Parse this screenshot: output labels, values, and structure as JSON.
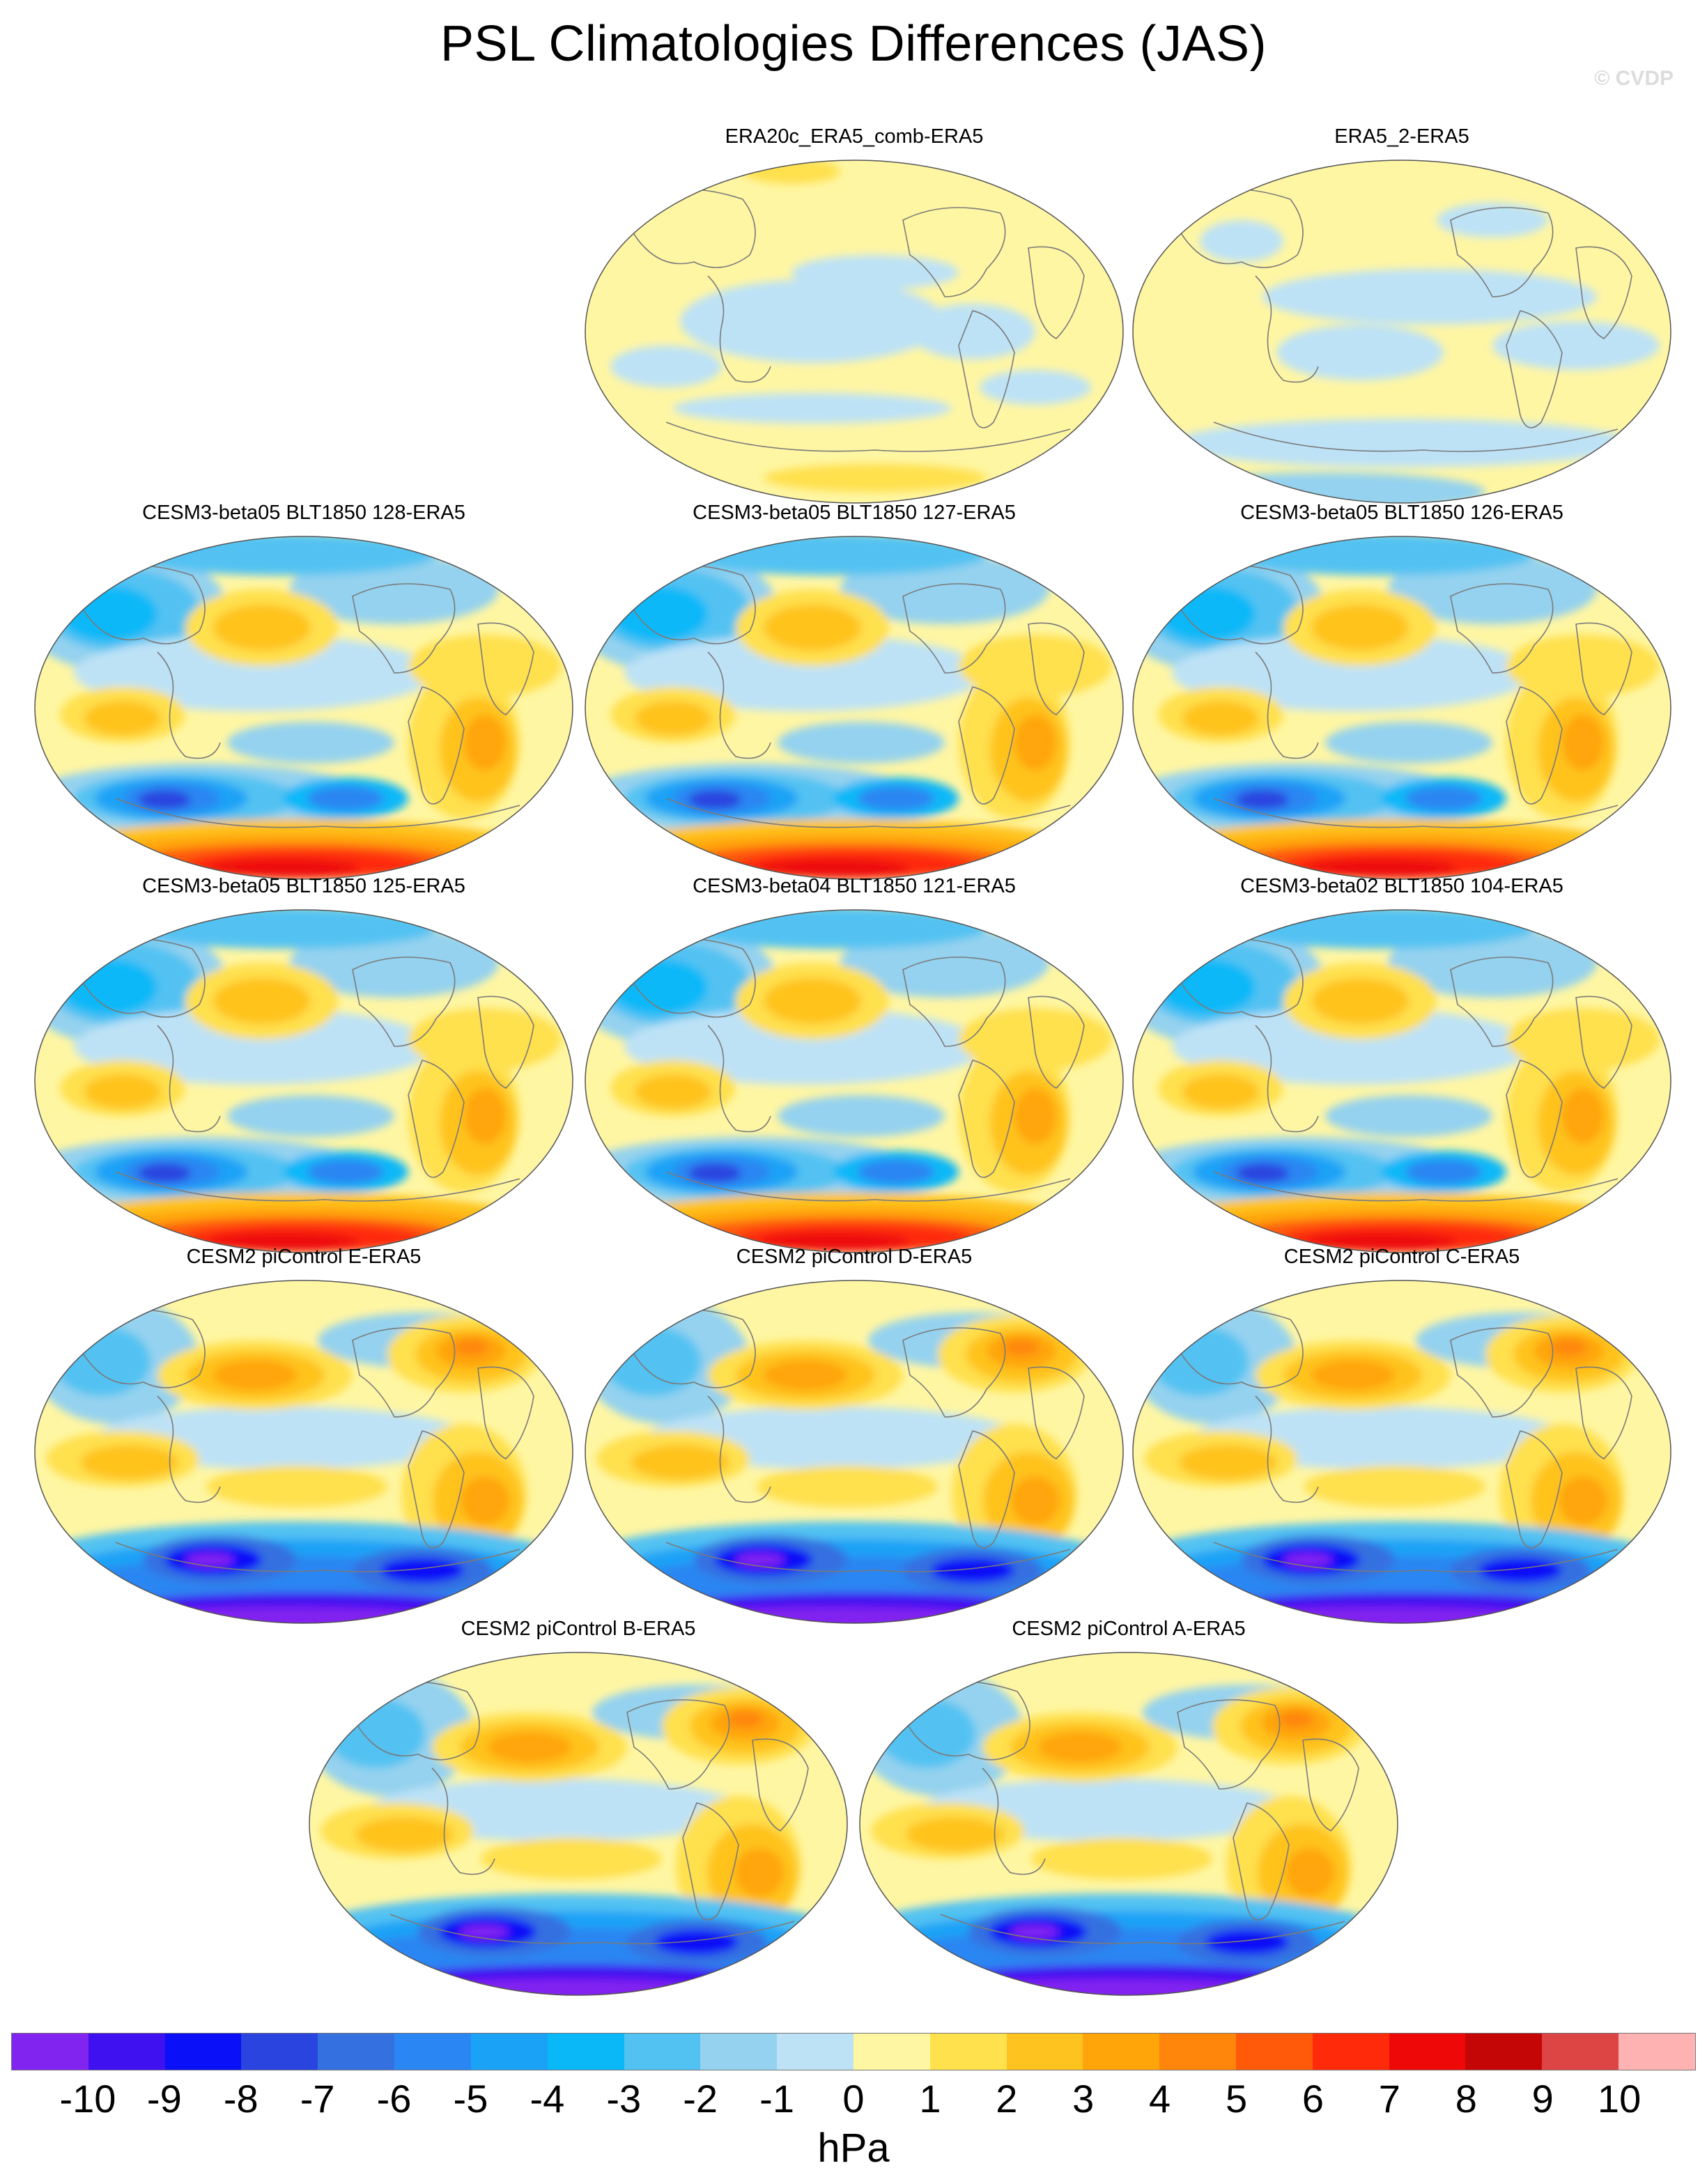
{
  "title": "PSL Climatologies Differences (JAS)",
  "watermark": "© CVDP",
  "panels": [
    {
      "title": "ERA20c_ERA5_comb-ERA5",
      "style": "obs1"
    },
    {
      "title": "ERA5_2-ERA5",
      "style": "obs2"
    },
    {
      "title": "CESM3-beta05 BLT1850 128-ERA5",
      "style": "beta"
    },
    {
      "title": "CESM3-beta05 BLT1850 127-ERA5",
      "style": "beta"
    },
    {
      "title": "CESM3-beta05 BLT1850 126-ERA5",
      "style": "beta"
    },
    {
      "title": "CESM3-beta05 BLT1850 125-ERA5",
      "style": "beta"
    },
    {
      "title": "CESM3-beta04 BLT1850 121-ERA5",
      "style": "beta"
    },
    {
      "title": "CESM3-beta02 BLT1850 104-ERA5",
      "style": "beta"
    },
    {
      "title": "CESM2 piControl E-ERA5",
      "style": "cesm2"
    },
    {
      "title": "CESM2 piControl D-ERA5",
      "style": "cesm2"
    },
    {
      "title": "CESM2 piControl C-ERA5",
      "style": "cesm2"
    },
    {
      "title": "CESM2 piControl B-ERA5",
      "style": "cesm2"
    },
    {
      "title": "CESM2 piControl A-ERA5",
      "style": "cesm2"
    }
  ],
  "colorbar": {
    "colors": [
      "#8124f0",
      "#3f10f0",
      "#0a10f8",
      "#2a44e0",
      "#3570e0",
      "#2a86f2",
      "#1aa2f6",
      "#0ab8f8",
      "#52c2f2",
      "#94d2ef",
      "#bde2f6",
      "#fff6a3",
      "#ffe04d",
      "#ffc31f",
      "#ffa50a",
      "#ff860a",
      "#ff5a0a",
      "#ff2a0a",
      "#ee0808",
      "#c40606",
      "#dd4444",
      "#ffb2b2"
    ],
    "labels": [
      "-10",
      "-9",
      "-8",
      "-7",
      "-6",
      "-5",
      "-4",
      "-3",
      "-2",
      "-1",
      "0",
      "1",
      "2",
      "3",
      "4",
      "5",
      "6",
      "7",
      "8",
      "9",
      "10"
    ],
    "units": "hPa"
  }
}
